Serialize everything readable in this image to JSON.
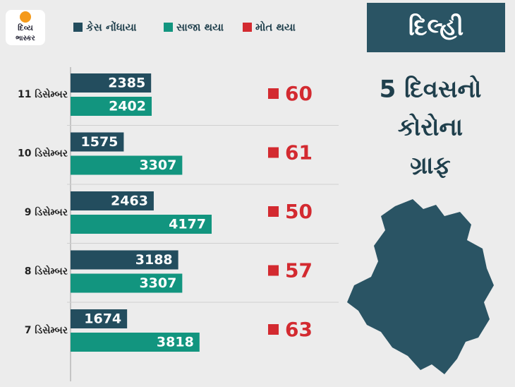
{
  "logo": {
    "line1": "દિવ્ય",
    "line2": "ભાસ્કર"
  },
  "panel": {
    "region": "દિલ્હી",
    "title_lines": [
      "5 દિવસનો",
      "કોરોના",
      "ગ્રાફ"
    ]
  },
  "chart_data": {
    "type": "bar",
    "categories": [
      "11 ડિસેમ્બર",
      "10 ડિસેમ્બર",
      "9 ડિસેમ્બર",
      "8 ડિસેમ્બર",
      "7 ડિસેમ્બર"
    ],
    "series": [
      {
        "name": "કેસ નોંધાયા",
        "color": "#234d5e",
        "values": [
          2385,
          1575,
          2463,
          3188,
          1674
        ]
      },
      {
        "name": "સાજા થયા",
        "color": "#12957f",
        "values": [
          2402,
          3307,
          4177,
          3307,
          3818
        ]
      },
      {
        "name": "મોત થયા",
        "color": "#d32a30",
        "values": [
          60,
          61,
          50,
          57,
          63
        ]
      }
    ]
  }
}
